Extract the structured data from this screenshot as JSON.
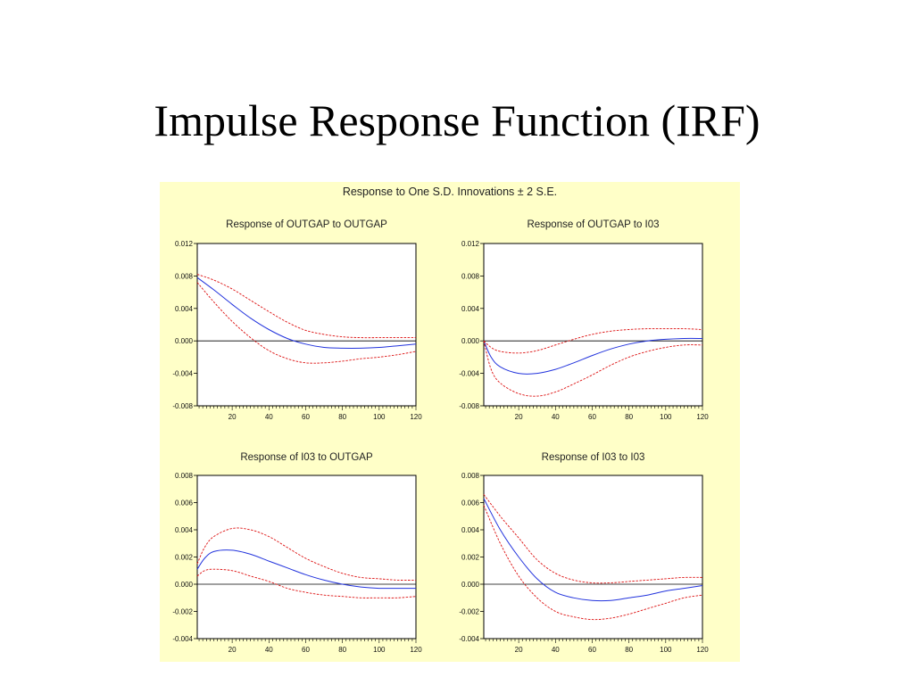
{
  "slide": {
    "title": "Impulse Response Function (IRF)"
  },
  "colors": {
    "background": "#ffffc8",
    "response_line": "#2233dd",
    "band_line": "#dd1111",
    "axis": "#000000"
  },
  "chart_data": {
    "type": "line",
    "title": "Response to One S.D. Innovations ± 2 S.E.",
    "panels": [
      {
        "title": "Response of OUTGAP to OUTGAP",
        "xlim": [
          1,
          120
        ],
        "ylim": [
          -0.008,
          0.012
        ],
        "xticks": [
          20,
          40,
          60,
          80,
          100,
          120
        ],
        "yticks": [
          "0.012",
          "0.008",
          "0.004",
          "0.000",
          "-0.004",
          "-0.008"
        ],
        "x": [
          1,
          10,
          20,
          30,
          40,
          50,
          60,
          70,
          80,
          90,
          100,
          110,
          120
        ],
        "series": [
          {
            "values": [
              0.0078,
              0.0063,
              0.0045,
              0.0028,
              0.0014,
              0.0003,
              -0.0004,
              -0.0008,
              -0.0009,
              -0.0009,
              -0.0008,
              -0.0006,
              -0.0004
            ]
          },
          {
            "values": [
              0.0082,
              0.0075,
              0.0064,
              0.005,
              0.0036,
              0.0023,
              0.0013,
              0.0008,
              0.0005,
              0.0004,
              0.0004,
              0.0004,
              0.0004
            ]
          },
          {
            "values": [
              0.0072,
              0.0048,
              0.0024,
              0.0004,
              -0.0012,
              -0.0022,
              -0.0027,
              -0.0027,
              -0.0025,
              -0.0022,
              -0.002,
              -0.0017,
              -0.0013
            ]
          }
        ]
      },
      {
        "title": "Response of OUTGAP to I03",
        "xlim": [
          1,
          120
        ],
        "ylim": [
          -0.008,
          0.012
        ],
        "xticks": [
          20,
          40,
          60,
          80,
          100,
          120
        ],
        "yticks": [
          "0.012",
          "0.008",
          "0.004",
          "0.000",
          "-0.004",
          "-0.008"
        ],
        "x": [
          1,
          5,
          10,
          20,
          30,
          40,
          50,
          60,
          70,
          80,
          90,
          100,
          110,
          120
        ],
        "series": [
          {
            "values": [
              0.0,
              -0.002,
              -0.0032,
              -0.004,
              -0.004,
              -0.0035,
              -0.0027,
              -0.0018,
              -0.001,
              -0.0004,
              0.0,
              0.0002,
              0.0003,
              0.0003
            ]
          },
          {
            "values": [
              0.0,
              -0.0008,
              -0.0013,
              -0.0015,
              -0.0012,
              -0.0005,
              0.0002,
              0.0008,
              0.0012,
              0.0014,
              0.0015,
              0.0015,
              0.0015,
              0.0014
            ]
          },
          {
            "values": [
              0.0,
              -0.0035,
              -0.0052,
              -0.0065,
              -0.0068,
              -0.0063,
              -0.0053,
              -0.0042,
              -0.003,
              -0.002,
              -0.0013,
              -0.0008,
              -0.0005,
              -0.0005
            ]
          }
        ]
      },
      {
        "title": "Response of I03 to OUTGAP",
        "xlim": [
          1,
          120
        ],
        "ylim": [
          -0.004,
          0.008
        ],
        "xticks": [
          20,
          40,
          60,
          80,
          100,
          120
        ],
        "yticks": [
          "0.008",
          "0.006",
          "0.004",
          "0.002",
          "0.000",
          "-0.002",
          "-0.004"
        ],
        "x": [
          1,
          5,
          10,
          20,
          30,
          40,
          50,
          60,
          70,
          80,
          90,
          100,
          110,
          120
        ],
        "series": [
          {
            "values": [
              0.0011,
              0.0019,
              0.0024,
              0.0025,
              0.0022,
              0.0017,
              0.0012,
              0.0007,
              0.0003,
              0.0,
              -0.0002,
              -0.0003,
              -0.0003,
              -0.0003
            ]
          },
          {
            "values": [
              0.0015,
              0.0027,
              0.0035,
              0.0041,
              0.004,
              0.0035,
              0.0027,
              0.0019,
              0.0013,
              0.0008,
              0.0005,
              0.0004,
              0.0003,
              0.0003
            ]
          },
          {
            "values": [
              0.0006,
              0.001,
              0.0011,
              0.001,
              0.0006,
              0.0002,
              -0.0003,
              -0.0006,
              -0.0008,
              -0.0009,
              -0.001,
              -0.001,
              -0.001,
              -0.0009
            ]
          }
        ]
      },
      {
        "title": "Response of I03 to I03",
        "xlim": [
          1,
          120
        ],
        "ylim": [
          -0.004,
          0.008
        ],
        "xticks": [
          20,
          40,
          60,
          80,
          100,
          120
        ],
        "yticks": [
          "0.008",
          "0.006",
          "0.004",
          "0.002",
          "0.000",
          "-0.002",
          "-0.004"
        ],
        "x": [
          1,
          10,
          20,
          30,
          40,
          50,
          60,
          70,
          80,
          90,
          100,
          110,
          120
        ],
        "series": [
          {
            "values": [
              0.0063,
              0.004,
              0.002,
              0.0004,
              -0.0006,
              -0.001,
              -0.0012,
              -0.0012,
              -0.001,
              -0.0008,
              -0.0005,
              -0.0003,
              -0.0001
            ]
          },
          {
            "values": [
              0.0066,
              0.005,
              0.0034,
              0.0018,
              0.0008,
              0.0003,
              0.0001,
              0.0001,
              0.0002,
              0.0003,
              0.0004,
              0.0005,
              0.0005
            ]
          },
          {
            "values": [
              0.0058,
              0.003,
              0.0006,
              -0.001,
              -0.002,
              -0.0024,
              -0.0026,
              -0.0025,
              -0.0022,
              -0.0018,
              -0.0014,
              -0.001,
              -0.0008
            ]
          }
        ]
      }
    ]
  }
}
